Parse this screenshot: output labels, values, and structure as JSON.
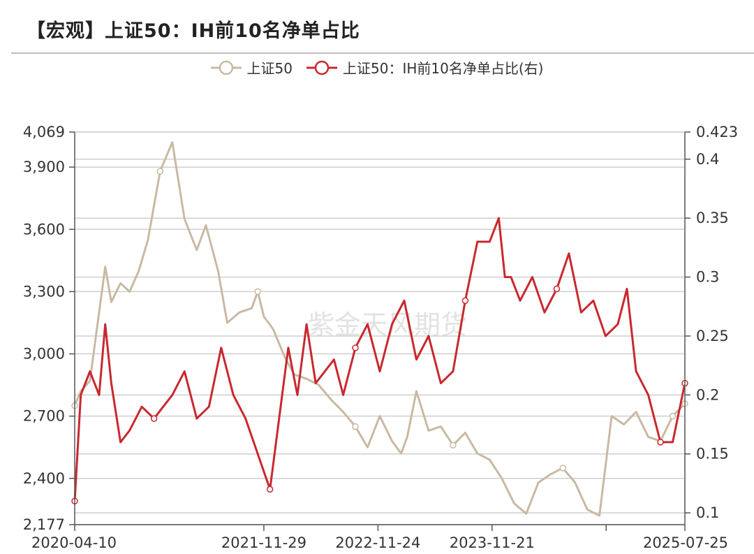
{
  "header": {
    "title": "【宏观】上证50：IH前10名净单占比"
  },
  "watermark": "紫金天风期货",
  "colors": {
    "index": "#c9b9a3",
    "ratio": "#c8282e",
    "grid": "#cfcfcf",
    "axis": "#555555"
  },
  "chart_data": {
    "type": "line",
    "title": "【宏观】上证50：IH前10名净单占比",
    "legend": [
      "上证50",
      "上证50：IH前10名净单占比(右)"
    ],
    "legend_position": "top-center",
    "grid": true,
    "x_tick_labels": [
      "2020-04-10",
      "2021-11-29",
      "2022-11-24",
      "2023-11-21",
      "2025-07-25"
    ],
    "y_left": {
      "min": 2177,
      "max": 4069,
      "ticks": [
        2177,
        2400,
        2700,
        3000,
        3300,
        3600,
        3900,
        4069
      ],
      "tick_labels": [
        "2,177",
        "2,400",
        "2,700",
        "3,000",
        "3,300",
        "3,600",
        "3,900",
        "4,069"
      ]
    },
    "y_right": {
      "min": 0.09,
      "max": 0.423,
      "ticks": [
        0.1,
        0.15,
        0.2,
        0.25,
        0.3,
        0.35,
        0.4,
        0.423
      ],
      "tick_labels": [
        "0.1",
        "0.15",
        "0.2",
        "0.25",
        "0.3",
        "0.35",
        "0.4",
        "0.423"
      ]
    },
    "series": [
      {
        "name": "上证50",
        "axis": "left",
        "x": [
          0,
          0.01,
          0.025,
          0.05,
          0.06,
          0.075,
          0.09,
          0.105,
          0.12,
          0.14,
          0.16,
          0.18,
          0.2,
          0.215,
          0.235,
          0.25,
          0.27,
          0.29,
          0.3,
          0.31,
          0.325,
          0.345,
          0.36,
          0.38,
          0.4,
          0.42,
          0.44,
          0.46,
          0.48,
          0.5,
          0.52,
          0.535,
          0.545,
          0.56,
          0.58,
          0.6,
          0.62,
          0.64,
          0.66,
          0.68,
          0.7,
          0.72,
          0.74,
          0.76,
          0.78,
          0.8,
          0.82,
          0.84,
          0.86,
          0.88,
          0.9,
          0.92,
          0.94,
          0.96,
          0.98,
          1.0
        ],
        "values": [
          2750,
          2820,
          2870,
          3420,
          3250,
          3340,
          3300,
          3400,
          3550,
          3880,
          4020,
          3650,
          3500,
          3620,
          3400,
          3150,
          3200,
          3220,
          3300,
          3180,
          3120,
          2980,
          2900,
          2880,
          2850,
          2780,
          2720,
          2650,
          2550,
          2700,
          2580,
          2520,
          2600,
          2820,
          2630,
          2650,
          2560,
          2620,
          2520,
          2490,
          2400,
          2280,
          2230,
          2380,
          2420,
          2450,
          2380,
          2250,
          2220,
          2700,
          2660,
          2720,
          2600,
          2580,
          2700,
          2760
        ]
      },
      {
        "name": "上证50：IH前10名净单占比(右)",
        "axis": "right",
        "x": [
          0,
          0.01,
          0.025,
          0.04,
          0.05,
          0.06,
          0.075,
          0.09,
          0.11,
          0.13,
          0.16,
          0.18,
          0.2,
          0.22,
          0.24,
          0.26,
          0.28,
          0.3,
          0.32,
          0.335,
          0.35,
          0.365,
          0.38,
          0.395,
          0.41,
          0.425,
          0.44,
          0.46,
          0.48,
          0.5,
          0.52,
          0.54,
          0.56,
          0.58,
          0.6,
          0.62,
          0.64,
          0.66,
          0.68,
          0.695,
          0.705,
          0.715,
          0.73,
          0.75,
          0.77,
          0.79,
          0.81,
          0.83,
          0.85,
          0.87,
          0.89,
          0.905,
          0.92,
          0.94,
          0.96,
          0.98,
          1.0
        ],
        "values": [
          0.11,
          0.2,
          0.22,
          0.2,
          0.26,
          0.21,
          0.16,
          0.17,
          0.19,
          0.18,
          0.2,
          0.22,
          0.18,
          0.19,
          0.24,
          0.2,
          0.18,
          0.15,
          0.12,
          0.18,
          0.24,
          0.2,
          0.26,
          0.21,
          0.22,
          0.23,
          0.2,
          0.24,
          0.26,
          0.22,
          0.26,
          0.28,
          0.23,
          0.25,
          0.21,
          0.22,
          0.28,
          0.33,
          0.33,
          0.35,
          0.3,
          0.3,
          0.28,
          0.3,
          0.27,
          0.29,
          0.32,
          0.27,
          0.28,
          0.25,
          0.26,
          0.29,
          0.22,
          0.2,
          0.16,
          0.16,
          0.21
        ]
      }
    ]
  }
}
